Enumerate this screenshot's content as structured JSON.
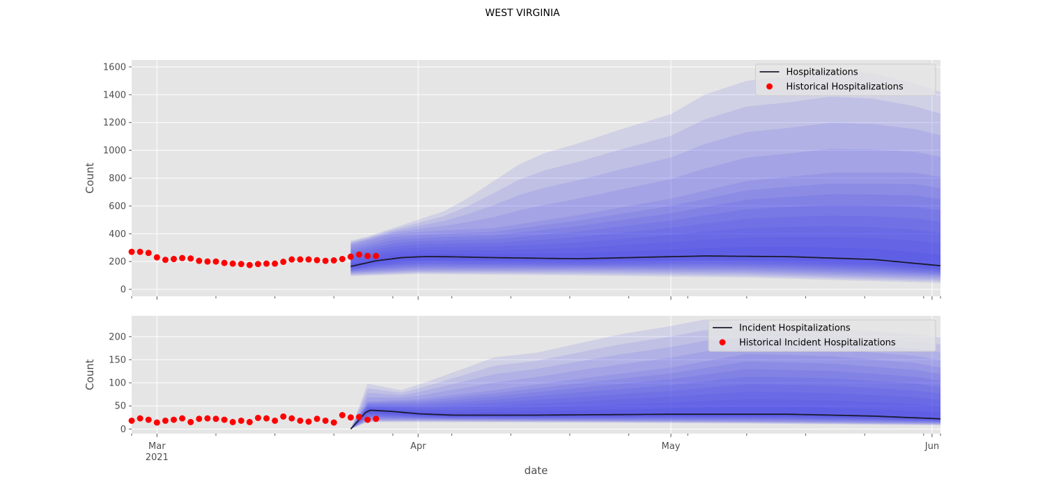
{
  "chart_data": {
    "suptitle": "WEST VIRGINIA",
    "xlabel": "date",
    "x_ticks": [
      {
        "date": "2021-03-01",
        "label": "Mar",
        "sublabel": "2021"
      },
      {
        "date": "2021-04-01",
        "label": "Apr",
        "sublabel": ""
      },
      {
        "date": "2021-05-01",
        "label": "May",
        "sublabel": ""
      },
      {
        "date": "2021-06-01",
        "label": "Jun",
        "sublabel": ""
      }
    ],
    "xlim": [
      "2021-02-26",
      "2021-06-02"
    ],
    "panels": [
      {
        "type": "line",
        "ylabel": "Count",
        "ylim": [
          -50,
          1650
        ],
        "yticks": [
          0,
          200,
          400,
          600,
          800,
          1000,
          1200,
          1400,
          1600
        ],
        "legend_position": "top-right",
        "forecast_start": "2021-03-24",
        "forecast_end": "2021-06-02",
        "series": [
          {
            "name": "Hospitalizations",
            "kind": "line",
            "color": "#1a1a2e",
            "points": [
              [
                "2021-03-24",
                165
              ],
              [
                "2021-03-27",
                205
              ],
              [
                "2021-03-30",
                228
              ],
              [
                "2021-04-02",
                236
              ],
              [
                "2021-04-05",
                234
              ],
              [
                "2021-04-10",
                228
              ],
              [
                "2021-04-20",
                220
              ],
              [
                "2021-05-01",
                235
              ],
              [
                "2021-05-05",
                240
              ],
              [
                "2021-05-15",
                235
              ],
              [
                "2021-05-25",
                215
              ],
              [
                "2021-06-02",
                170
              ]
            ]
          },
          {
            "name": "Historical Hospitalizations",
            "kind": "scatter",
            "color": "#ff0000",
            "x_start": "2021-02-26",
            "values": [
              270,
              270,
              262,
              230,
              212,
              218,
              225,
              222,
              205,
              200,
              200,
              190,
              185,
              182,
              175,
              182,
              185,
              185,
              198,
              215,
              215,
              215,
              210,
              205,
              208,
              218,
              235,
              250,
              240,
              240
            ]
          }
        ],
        "band_outer": {
          "upper": [
            [
              "2021-03-24",
              350
            ],
            [
              "2021-03-26",
              380
            ],
            [
              "2021-03-29",
              440
            ],
            [
              "2021-04-01",
              500
            ],
            [
              "2021-04-04",
              560
            ],
            [
              "2021-04-07",
              660
            ],
            [
              "2021-04-10",
              780
            ],
            [
              "2021-04-13",
              900
            ],
            [
              "2021-04-16",
              980
            ],
            [
              "2021-04-20",
              1050
            ],
            [
              "2021-04-25",
              1150
            ],
            [
              "2021-05-01",
              1260
            ],
            [
              "2021-05-05",
              1400
            ],
            [
              "2021-05-10",
              1500
            ],
            [
              "2021-05-15",
              1530
            ],
            [
              "2021-05-20",
              1575
            ],
            [
              "2021-05-25",
              1555
            ],
            [
              "2021-05-30",
              1480
            ],
            [
              "2021-06-02",
              1420
            ]
          ],
          "lower": [
            [
              "2021-03-24",
              95
            ],
            [
              "2021-04-01",
              110
            ],
            [
              "2021-04-20",
              100
            ],
            [
              "2021-05-10",
              85
            ],
            [
              "2021-06-02",
              45
            ]
          ]
        },
        "band_median": {
          "upper": [
            [
              "2021-03-24",
              320
            ],
            [
              "2021-03-29",
              400
            ],
            [
              "2021-04-02",
              420
            ],
            [
              "2021-04-10",
              445
            ],
            [
              "2021-04-20",
              540
            ],
            [
              "2021-05-01",
              660
            ],
            [
              "2021-05-10",
              790
            ],
            [
              "2021-05-20",
              850
            ],
            [
              "2021-05-30",
              850
            ],
            [
              "2021-06-02",
              820
            ]
          ],
          "lower": [
            [
              "2021-03-24",
              120
            ],
            [
              "2021-04-01",
              140
            ],
            [
              "2021-04-20",
              140
            ],
            [
              "2021-05-10",
              130
            ],
            [
              "2021-06-02",
              90
            ]
          ]
        }
      },
      {
        "type": "line",
        "ylabel": "Count",
        "ylim": [
          -10,
          245
        ],
        "yticks": [
          0,
          50,
          100,
          150,
          200
        ],
        "legend_position": "top-right",
        "forecast_start": "2021-03-24",
        "forecast_end": "2021-06-02",
        "series": [
          {
            "name": "Incident Hospitalizations",
            "kind": "line",
            "color": "#1a1a2e",
            "points": [
              [
                "2021-03-24",
                0
              ],
              [
                "2021-03-25",
                20
              ],
              [
                "2021-03-26",
                41
              ],
              [
                "2021-03-29",
                38
              ],
              [
                "2021-04-01",
                33
              ],
              [
                "2021-04-05",
                30
              ],
              [
                "2021-04-15",
                30
              ],
              [
                "2021-05-01",
                32
              ],
              [
                "2021-05-15",
                32
              ],
              [
                "2021-05-25",
                28
              ],
              [
                "2021-06-02",
                22
              ]
            ]
          },
          {
            "name": "Historical Incident Hospitalizations",
            "kind": "scatter",
            "color": "#ff0000",
            "x_start": "2021-02-26",
            "values": [
              18,
              23,
              20,
              14,
              18,
              20,
              23,
              15,
              22,
              23,
              22,
              20,
              15,
              18,
              15,
              24,
              23,
              18,
              27,
              23,
              18,
              16,
              22,
              18,
              14,
              30,
              25,
              26,
              20,
              22
            ]
          }
        ],
        "band_outer": {
          "upper": [
            [
              "2021-03-24",
              0
            ],
            [
              "2021-03-26",
              98
            ],
            [
              "2021-03-30",
              84
            ],
            [
              "2021-04-02",
              102
            ],
            [
              "2021-04-06",
              128
            ],
            [
              "2021-04-10",
              155
            ],
            [
              "2021-04-15",
              165
            ],
            [
              "2021-04-20",
              185
            ],
            [
              "2021-04-25",
              205
            ],
            [
              "2021-05-01",
              223
            ],
            [
              "2021-05-05",
              237
            ],
            [
              "2021-05-10",
              232
            ],
            [
              "2021-05-15",
              225
            ],
            [
              "2021-05-20",
              218
            ],
            [
              "2021-05-25",
              212
            ],
            [
              "2021-05-30",
              205
            ],
            [
              "2021-06-02",
              200
            ]
          ],
          "lower": [
            [
              "2021-03-24",
              0
            ],
            [
              "2021-03-26",
              15
            ],
            [
              "2021-04-01",
              15
            ],
            [
              "2021-04-20",
              14
            ],
            [
              "2021-05-10",
              12
            ],
            [
              "2021-06-02",
              8
            ]
          ]
        },
        "band_median": {
          "upper": [
            [
              "2021-03-24",
              0
            ],
            [
              "2021-03-26",
              60
            ],
            [
              "2021-04-01",
              65
            ],
            [
              "2021-04-10",
              85
            ],
            [
              "2021-04-20",
              110
            ],
            [
              "2021-05-01",
              135
            ],
            [
              "2021-05-10",
              165
            ],
            [
              "2021-05-20",
              160
            ],
            [
              "2021-05-30",
              145
            ],
            [
              "2021-06-02",
              135
            ]
          ],
          "lower": [
            [
              "2021-03-24",
              0
            ],
            [
              "2021-03-26",
              20
            ],
            [
              "2021-04-01",
              20
            ],
            [
              "2021-04-20",
              18
            ],
            [
              "2021-05-10",
              16
            ],
            [
              "2021-06-02",
              12
            ]
          ]
        }
      }
    ]
  }
}
